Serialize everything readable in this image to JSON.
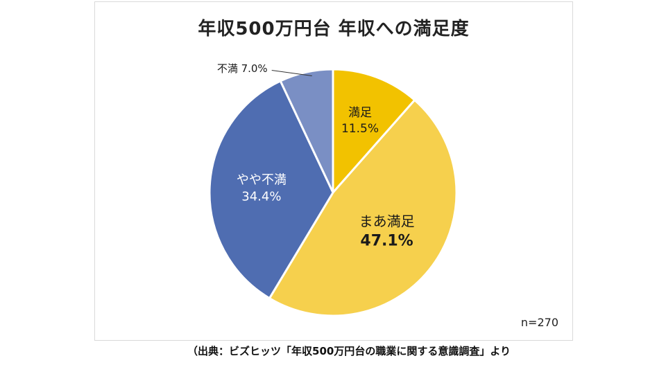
{
  "chart_data": {
    "type": "pie",
    "title": "年収500万円台 年収への満足度",
    "slices": [
      {
        "label": "満足",
        "value": 11.5,
        "value_text": "11.5%",
        "color": "#f2c200"
      },
      {
        "label": "まあ満足",
        "value": 47.1,
        "value_text": "47.1%",
        "color": "#f6d04d"
      },
      {
        "label": "やや不満",
        "value": 34.4,
        "value_text": "34.4%",
        "color": "#4f6db1"
      },
      {
        "label": "不満",
        "value": 7.0,
        "value_text": "7.0%",
        "color": "#7a8fc4"
      }
    ],
    "start": "12 o'clock",
    "direction": "clockwise",
    "sample_size": "n=270"
  },
  "source": "（出典：ビズヒッツ「年収500万円台の職業に関する意識調査」より"
}
